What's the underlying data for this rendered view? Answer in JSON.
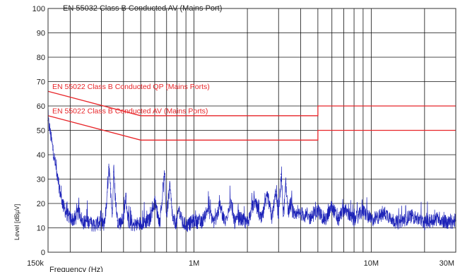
{
  "colors": {
    "limit": "#e8262a",
    "trace": "#1d23b8",
    "grid": "#111111",
    "frame": "#333333"
  },
  "chart_data": {
    "type": "line",
    "title": "EN 55032 Class B Conducted AV (Mains Port)",
    "xlabel": "Frequency (Hz)",
    "ylabel": "Level [dBµV]",
    "x_scale": "log",
    "xlim": [
      150000,
      30000000
    ],
    "ylim": [
      0,
      100
    ],
    "y_ticks": [
      0,
      10,
      20,
      30,
      40,
      50,
      60,
      70,
      80,
      90,
      100
    ],
    "x_tick_labels": [
      {
        "value": 150000,
        "label": "150k"
      },
      {
        "value": 1000000,
        "label": "1M"
      },
      {
        "value": 10000000,
        "label": "10M"
      },
      {
        "value": 30000000,
        "label": "30M"
      }
    ],
    "grid": true,
    "limit_lines": [
      {
        "name": "EN 55022 Class B Conducted QP (Mains Ports)",
        "points": [
          [
            150000,
            66
          ],
          [
            500000,
            56
          ],
          [
            5000000,
            56
          ],
          [
            5000000,
            60
          ],
          [
            30000000,
            60
          ]
        ]
      },
      {
        "name": "EN 55022 Class B Conducted AV (Mains Ports)",
        "points": [
          [
            150000,
            56
          ],
          [
            500000,
            46
          ],
          [
            5000000,
            46
          ],
          [
            5000000,
            50
          ],
          [
            30000000,
            50
          ]
        ]
      }
    ],
    "series": [
      {
        "values_note": "",
        "points": [
          [
            150000,
            54
          ],
          [
            153000,
            51
          ],
          [
            156000,
            47
          ],
          [
            160000,
            42
          ],
          [
            165000,
            36
          ],
          [
            170000,
            30
          ],
          [
            176000,
            24
          ],
          [
            183000,
            19
          ],
          [
            190000,
            16
          ],
          [
            200000,
            14
          ],
          [
            212000,
            13
          ],
          [
            224000,
            17
          ],
          [
            236000,
            12
          ],
          [
            250000,
            13
          ],
          [
            270000,
            11
          ],
          [
            290000,
            12
          ],
          [
            310000,
            11
          ],
          [
            322000,
            20
          ],
          [
            330000,
            35
          ],
          [
            338000,
            26
          ],
          [
            346000,
            16
          ],
          [
            352000,
            33
          ],
          [
            360000,
            22
          ],
          [
            370000,
            13
          ],
          [
            385000,
            12
          ],
          [
            400000,
            14
          ],
          [
            412000,
            23
          ],
          [
            425000,
            13
          ],
          [
            450000,
            11
          ],
          [
            500000,
            12
          ],
          [
            560000,
            13
          ],
          [
            600000,
            21
          ],
          [
            640000,
            12
          ],
          [
            680000,
            31
          ],
          [
            700000,
            15
          ],
          [
            730000,
            27
          ],
          [
            760000,
            13
          ],
          [
            800000,
            12
          ],
          [
            820000,
            18
          ],
          [
            860000,
            12
          ],
          [
            920000,
            11
          ],
          [
            1000000,
            13
          ],
          [
            1100000,
            12
          ],
          [
            1200000,
            18
          ],
          [
            1300000,
            12
          ],
          [
            1400000,
            19
          ],
          [
            1500000,
            12
          ],
          [
            1600000,
            21
          ],
          [
            1700000,
            12
          ],
          [
            1800000,
            14
          ],
          [
            2000000,
            12
          ],
          [
            2200000,
            21
          ],
          [
            2400000,
            13
          ],
          [
            2600000,
            23
          ],
          [
            2750000,
            14
          ],
          [
            2900000,
            25
          ],
          [
            3000000,
            14
          ],
          [
            3100000,
            32
          ],
          [
            3200000,
            15
          ],
          [
            3300000,
            28
          ],
          [
            3400000,
            16
          ],
          [
            3500000,
            20
          ],
          [
            3700000,
            14
          ],
          [
            4000000,
            16
          ],
          [
            4500000,
            14
          ],
          [
            5000000,
            17
          ],
          [
            5500000,
            13
          ],
          [
            6000000,
            19
          ],
          [
            6500000,
            13
          ],
          [
            7000000,
            18
          ],
          [
            8000000,
            13
          ],
          [
            9000000,
            17
          ],
          [
            10000000,
            13
          ],
          [
            12000000,
            16
          ],
          [
            14000000,
            12
          ],
          [
            17000000,
            15
          ],
          [
            20000000,
            12
          ],
          [
            24000000,
            14
          ],
          [
            27000000,
            12
          ],
          [
            30000000,
            13
          ]
        ]
      }
    ]
  }
}
